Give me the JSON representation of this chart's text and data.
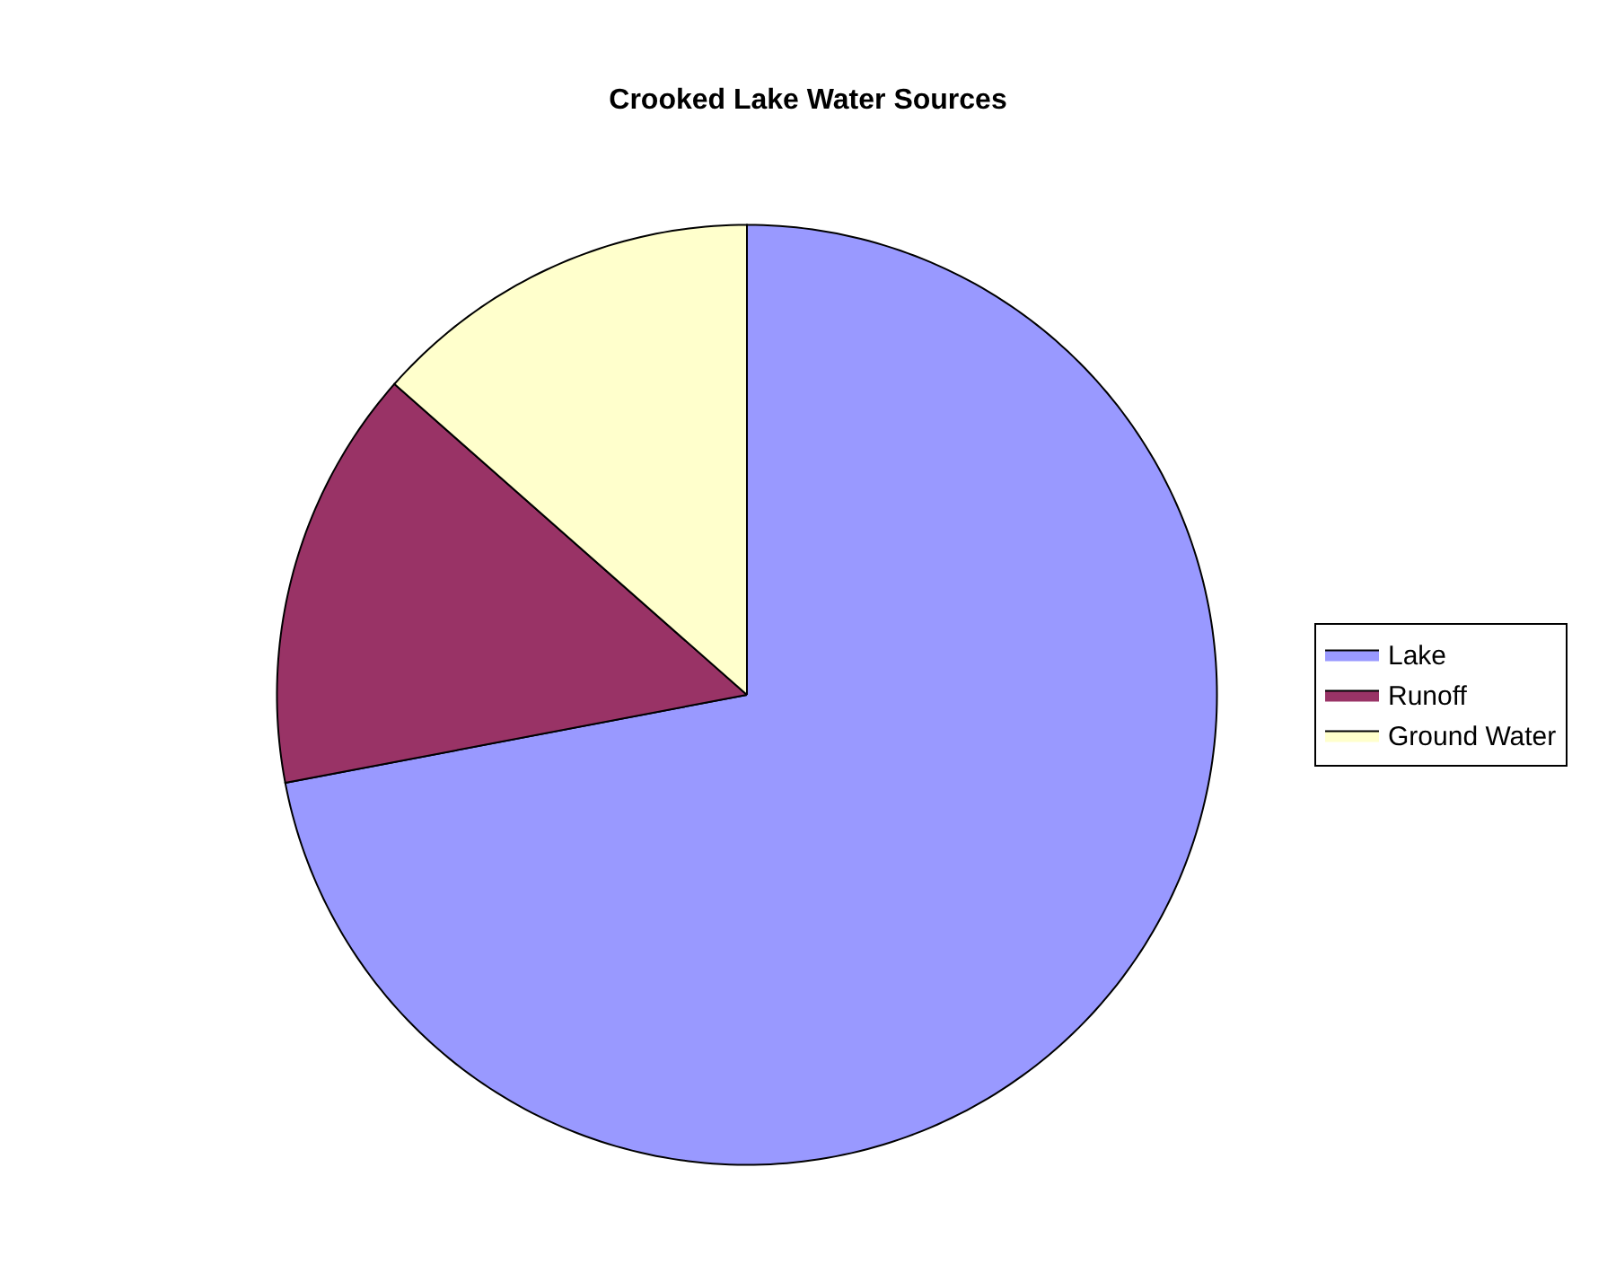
{
  "chart_data": {
    "type": "pie",
    "title": "Crooked Lake Water Sources",
    "categories": [
      "Lake",
      "Runoff",
      "Ground Water"
    ],
    "values": [
      72,
      14.5,
      13.5
    ],
    "colors": [
      "#9999ff",
      "#993366",
      "#ffffcc"
    ],
    "legend": "right"
  }
}
